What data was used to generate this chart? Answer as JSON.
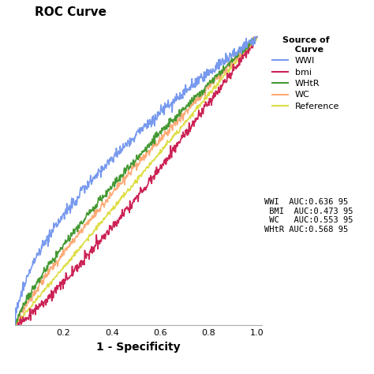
{
  "title": "ROC Curve",
  "xlabel": "1 - Specificity",
  "background_color": "#ffffff",
  "curves": {
    "WWI": {
      "color": "#7799ee",
      "power": 0.6
    },
    "WHtR": {
      "color": "#449933",
      "power": 0.8
    },
    "WC": {
      "color": "#ffaa77",
      "power": 0.86
    },
    "Reference": {
      "color": "#dddd44",
      "power": 1.0
    },
    "bmi": {
      "color": "#cc2255",
      "power": 1.18
    }
  },
  "noise_std": {
    "WWI": 0.01,
    "WHtR": 0.007,
    "WC": 0.007,
    "Reference": 0.004,
    "bmi": 0.009
  },
  "legend_title": "Source of\n  Curve",
  "legend_labels": [
    "WWI",
    "bmi",
    "WHtR",
    "WC",
    "Reference"
  ],
  "auc_lines": [
    "WWI  AUC:0.636 95",
    " BMI  AUC:0.473 95",
    " WC   AUC:0.553 95",
    "WHtR AUC:0.568 95"
  ],
  "xticks": [
    0.2,
    0.4,
    0.6,
    0.8,
    1.0
  ],
  "xlim": [
    0.0,
    1.02
  ],
  "ylim": [
    0.0,
    1.05
  ],
  "title_fontsize": 11,
  "tick_fontsize": 8,
  "xlabel_fontsize": 10,
  "legend_fontsize": 8,
  "auc_fontsize": 7.5,
  "linewidth": 1.2
}
